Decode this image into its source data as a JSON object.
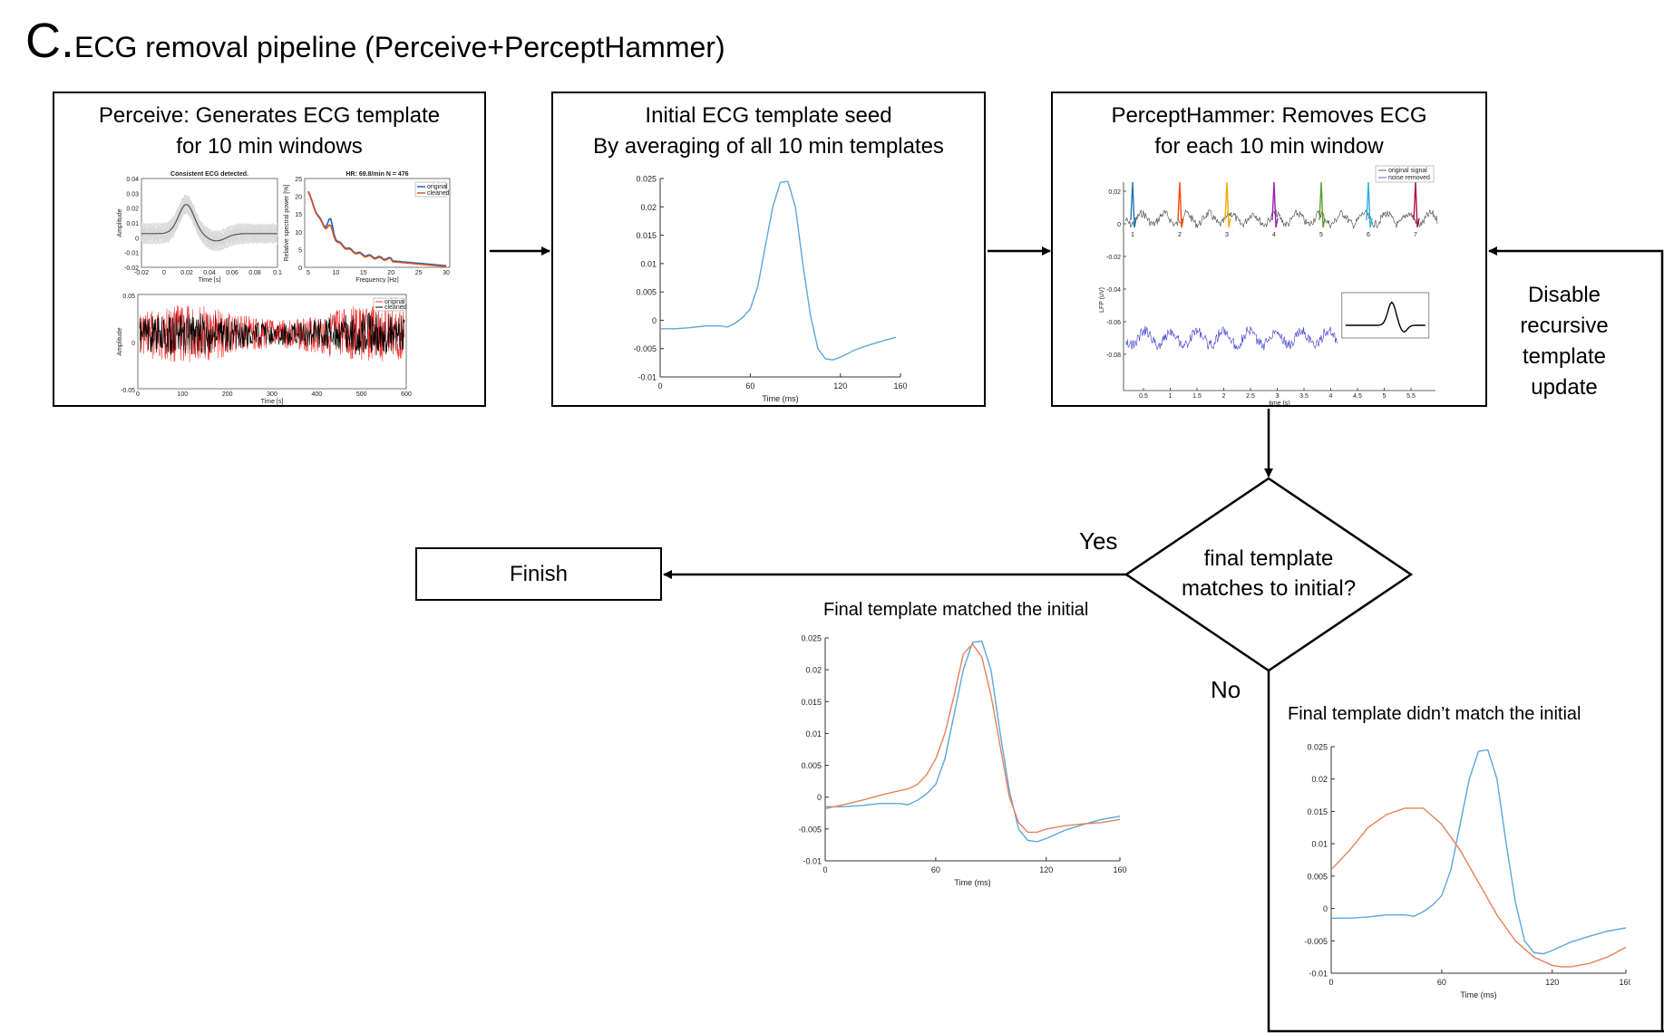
{
  "panel_letter": "C.",
  "title": "ECG removal pipeline (Perceive+PerceptHammer)",
  "boxes": {
    "perceive": {
      "line1": "Perceive: Generates ECG template",
      "line2": "for 10 min windows"
    },
    "seed": {
      "line1": "Initial ECG template seed",
      "line2": "By averaging of all 10 min templates"
    },
    "hammer": {
      "line1": "PerceptHammer: Removes ECG",
      "line2": "for each 10 min window"
    },
    "finish": {
      "label": "Finish"
    }
  },
  "decision": {
    "line1": "final template",
    "line2": "matches to initial?"
  },
  "edge_labels": {
    "yes": "Yes",
    "no": "No"
  },
  "feedback_note": {
    "lines": [
      "Disable",
      "recursive",
      "template",
      "update"
    ]
  },
  "captions": {
    "matched": "Final template matched the initial",
    "not_matched": "Final template didn’t match the initial"
  },
  "perceive_thumbnails": {
    "template_title": "Consistent ECG detected.",
    "template_ylabel": "Amplitude",
    "template_xlabel": "Time [s]",
    "template_xticks": [
      "-0.02",
      "0",
      "0.02",
      "0.04",
      "0.06",
      "0.08",
      "0.1"
    ],
    "template_yticks": [
      "0.04",
      "0.03",
      "0.02",
      "0.01",
      "0",
      "-0.01",
      "-0.02"
    ],
    "psd_title": "HR: 69.8/min  N = 476",
    "psd_ylabel": "Relative spectral power [%]",
    "psd_xlabel": "Frequency [Hz]",
    "psd_xticks": [
      "5",
      "10",
      "15",
      "20",
      "25",
      "30"
    ],
    "psd_yticks": [
      "25",
      "20",
      "15",
      "10",
      "5",
      "0"
    ],
    "psd_legend": [
      "original",
      "cleaned"
    ],
    "ts_ylabel": "Amplitude",
    "ts_xlabel": "Time [s]",
    "ts_xticks": [
      "0",
      "100",
      "200",
      "300",
      "400",
      "500",
      "600"
    ],
    "ts_yticks": [
      "0.05",
      "0",
      "-0.05"
    ],
    "ts_legend": [
      "original",
      "cleaned"
    ],
    "colors": {
      "original": "#1f5fc8",
      "cleaned": "#d9531e",
      "ts_original": "#ff2a2a",
      "ts_cleaned": "#000000"
    }
  },
  "hammer_thumbnail": {
    "legend": [
      "original signal",
      "noise removed"
    ],
    "ylabel": "LFP (uV)",
    "xlabel": "time (s)",
    "xticks": [
      "0.5",
      "1",
      "1.5",
      "2",
      "2.5",
      "3",
      "3.5",
      "4",
      "4.5",
      "5",
      "5.5"
    ],
    "yticks": [
      "0.02",
      "0",
      "-0.02",
      "-0.04",
      "-0.06",
      "-0.08"
    ],
    "beat_numbers": [
      "1",
      "2",
      "3",
      "4",
      "5",
      "6",
      "7"
    ],
    "beat_colors": [
      "#1f77b4",
      "#ff4500",
      "#f2a900",
      "#9b1fb4",
      "#5aa02c",
      "#2ab0e0",
      "#b01040"
    ]
  },
  "chart_data": [
    {
      "type": "line",
      "id": "initial",
      "xlabel": "Time (ms)",
      "xlim": [
        0,
        160
      ],
      "ylim": [
        -0.01,
        0.025
      ],
      "xticks": [
        0,
        60,
        120,
        160
      ],
      "yticks": [
        0.025,
        0.02,
        0.015,
        0.01,
        0.005,
        0,
        -0.005,
        -0.01
      ],
      "ytick_labels": [
        "0.025",
        "0.02",
        "0.015",
        "0.01",
        "0.005",
        "0",
        "-0.005",
        "-0.01"
      ],
      "series": [
        {
          "color": "#5aa7dc",
          "x": [
            0,
            10,
            20,
            30,
            40,
            45,
            50,
            55,
            60,
            65,
            70,
            75,
            80,
            85,
            90,
            95,
            100,
            105,
            110,
            115,
            120,
            130,
            140,
            150,
            157
          ],
          "y": [
            -0.0015,
            -0.0015,
            -0.0013,
            -0.001,
            -0.001,
            -0.0012,
            -0.0005,
            0.0005,
            0.002,
            0.006,
            0.013,
            0.02,
            0.0243,
            0.0245,
            0.02,
            0.01,
            0.001,
            -0.005,
            -0.0068,
            -0.007,
            -0.0065,
            -0.0052,
            -0.0043,
            -0.0035,
            -0.003
          ]
        }
      ]
    },
    {
      "type": "line",
      "id": "matched",
      "xlabel": "Time (ms)",
      "xlim": [
        0,
        160
      ],
      "ylim": [
        -0.01,
        0.025
      ],
      "xticks": [
        0,
        60,
        120,
        160
      ],
      "yticks": [
        0.025,
        0.02,
        0.015,
        0.01,
        0.005,
        0,
        -0.005,
        -0.01
      ],
      "ytick_labels": [
        "0.025",
        "0.02",
        "0.015",
        "0.01",
        "0.005",
        "0",
        "-0.005",
        "-0.01"
      ],
      "series": [
        {
          "color": "#5aa7dc",
          "x": [
            0,
            10,
            20,
            30,
            40,
            45,
            50,
            55,
            60,
            65,
            70,
            75,
            80,
            85,
            90,
            95,
            100,
            105,
            110,
            115,
            120,
            130,
            140,
            150,
            160
          ],
          "y": [
            -0.0015,
            -0.0015,
            -0.0013,
            -0.001,
            -0.001,
            -0.0012,
            -0.0005,
            0.0005,
            0.002,
            0.006,
            0.013,
            0.02,
            0.0243,
            0.0245,
            0.02,
            0.01,
            0.001,
            -0.005,
            -0.0068,
            -0.007,
            -0.0065,
            -0.0052,
            -0.0043,
            -0.0035,
            -0.003
          ]
        },
        {
          "color": "#e8805a",
          "x": [
            0,
            10,
            20,
            30,
            40,
            45,
            50,
            55,
            60,
            65,
            70,
            75,
            80,
            85,
            90,
            95,
            100,
            105,
            110,
            115,
            120,
            130,
            140,
            150,
            160
          ],
          "y": [
            -0.0018,
            -0.0012,
            -0.0005,
            0.0003,
            0.001,
            0.0013,
            0.002,
            0.0035,
            0.006,
            0.01,
            0.016,
            0.0225,
            0.024,
            0.022,
            0.016,
            0.008,
            0.0,
            -0.004,
            -0.0055,
            -0.0055,
            -0.005,
            -0.0045,
            -0.0042,
            -0.004,
            -0.0035
          ]
        }
      ]
    },
    {
      "type": "line",
      "id": "not_matched",
      "xlabel": "Time (ms)",
      "xlim": [
        0,
        160
      ],
      "ylim": [
        -0.01,
        0.025
      ],
      "xticks": [
        0,
        60,
        120,
        160
      ],
      "yticks": [
        0.025,
        0.02,
        0.015,
        0.01,
        0.005,
        0,
        -0.005,
        -0.01
      ],
      "ytick_labels": [
        "0.025",
        "0.02",
        "0.015",
        "0.01",
        "0.005",
        "0",
        "-0.005",
        "-0.01"
      ],
      "series": [
        {
          "color": "#5aa7dc",
          "x": [
            0,
            10,
            20,
            30,
            40,
            45,
            50,
            55,
            60,
            65,
            70,
            75,
            80,
            85,
            90,
            95,
            100,
            105,
            110,
            115,
            120,
            130,
            140,
            150,
            160
          ],
          "y": [
            -0.0015,
            -0.0015,
            -0.0013,
            -0.001,
            -0.001,
            -0.0012,
            -0.0005,
            0.0005,
            0.002,
            0.006,
            0.013,
            0.02,
            0.0243,
            0.0245,
            0.02,
            0.01,
            0.001,
            -0.005,
            -0.0068,
            -0.007,
            -0.0065,
            -0.0052,
            -0.0043,
            -0.0035,
            -0.003
          ]
        },
        {
          "color": "#e8805a",
          "x": [
            0,
            10,
            20,
            30,
            40,
            50,
            60,
            70,
            80,
            90,
            100,
            110,
            120,
            125,
            130,
            140,
            150,
            160
          ],
          "y": [
            0.006,
            0.009,
            0.0125,
            0.0145,
            0.0155,
            0.0155,
            0.013,
            0.009,
            0.004,
            -0.001,
            -0.005,
            -0.0075,
            -0.0088,
            -0.009,
            -0.009,
            -0.0085,
            -0.0075,
            -0.006
          ]
        }
      ]
    }
  ]
}
